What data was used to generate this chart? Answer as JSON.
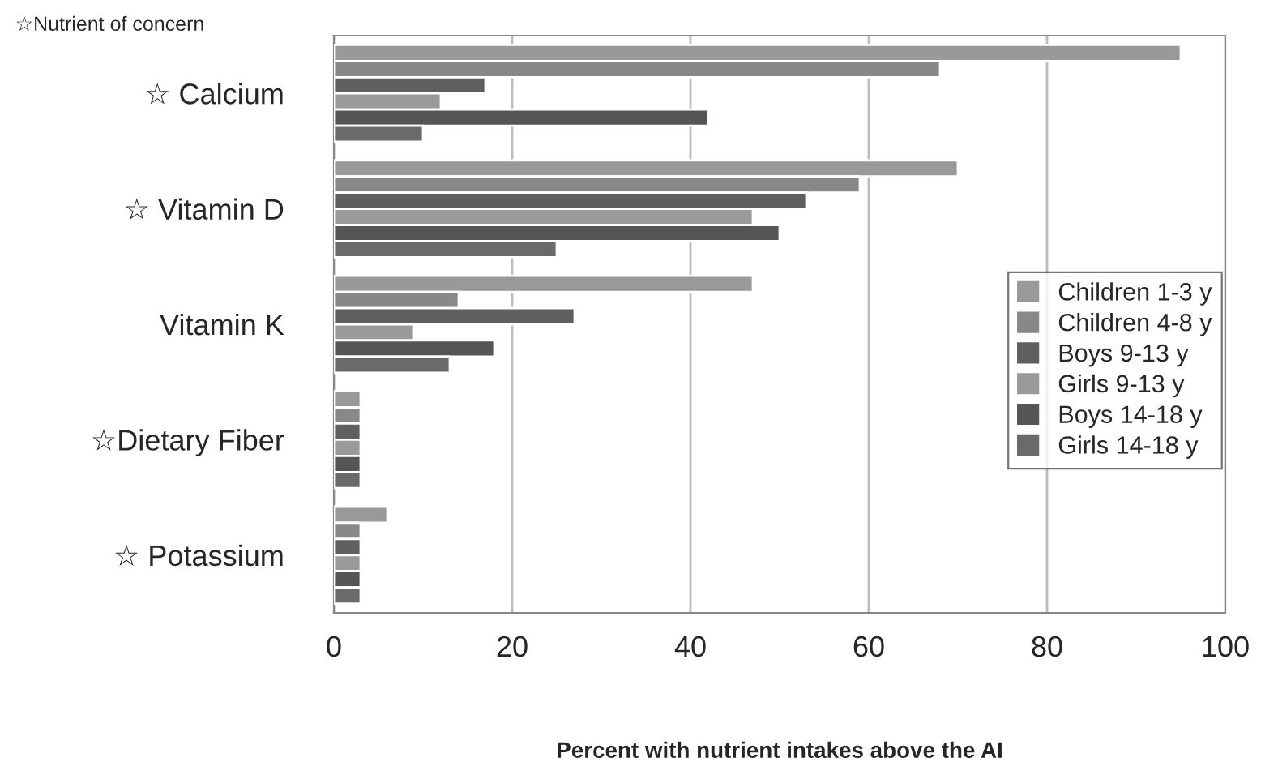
{
  "chart_data": {
    "type": "bar",
    "orientation": "horizontal",
    "categories": [
      "☆ Calcium",
      "☆ Vitamin D",
      "Vitamin K",
      "☆Dietary Fiber",
      "☆ Potassium"
    ],
    "series": [
      {
        "name": "Children 1-3 y",
        "color": "#999999",
        "values": [
          95,
          70,
          47,
          3,
          6
        ]
      },
      {
        "name": "Children 4-8 y",
        "color": "#888888",
        "values": [
          68,
          59,
          14,
          3,
          3
        ]
      },
      {
        "name": "Boys 9-13 y",
        "color": "#5f5f5f",
        "values": [
          17,
          53,
          27,
          3,
          3
        ]
      },
      {
        "name": "Girls 9-13 y",
        "color": "#9a9a9a",
        "values": [
          12,
          47,
          9,
          3,
          3
        ]
      },
      {
        "name": "Boys 14-18 y",
        "color": "#555555",
        "values": [
          42,
          50,
          18,
          3,
          3
        ]
      },
      {
        "name": "Girls 14-18 y",
        "color": "#6a6a6a",
        "values": [
          10,
          25,
          13,
          3,
          3
        ]
      }
    ],
    "xlabel": "Percent with nutrient intakes above the AI",
    "annotations": [
      "☆Nutrient of concern"
    ],
    "xlim": [
      0,
      100
    ],
    "xticks": [
      0,
      20,
      40,
      60,
      80,
      100
    ],
    "grid": "x",
    "legend": "right"
  }
}
